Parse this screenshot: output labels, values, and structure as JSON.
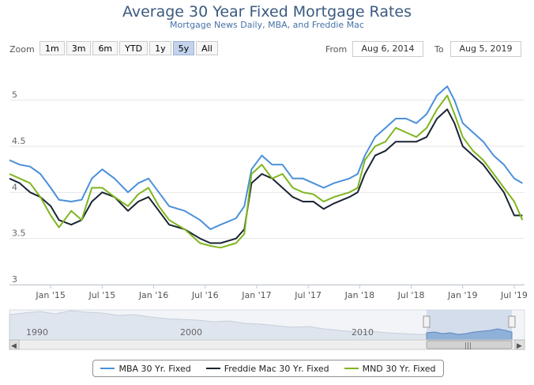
{
  "chart_data": {
    "type": "line",
    "title": "Average 30 Year Fixed Mortgage Rates",
    "subtitle": "Mortgage News Daily, MBA, and Freddie Mac",
    "x_start": 2014.6,
    "x_end": 2019.6,
    "ylim": [
      3,
      5.4
    ],
    "y_ticks": [
      {
        "value": 3,
        "label": "3"
      },
      {
        "value": 3.5,
        "label": "3.5"
      },
      {
        "value": 4,
        "label": "4"
      },
      {
        "value": 4.5,
        "label": "4.5"
      },
      {
        "value": 5,
        "label": "5"
      }
    ],
    "x_ticks": [
      {
        "x": 2015.0,
        "label": "Jan '15"
      },
      {
        "x": 2015.5,
        "label": "Jul '15"
      },
      {
        "x": 2016.0,
        "label": "Jan '16"
      },
      {
        "x": 2016.5,
        "label": "Jul '16"
      },
      {
        "x": 2017.0,
        "label": "Jan '17"
      },
      {
        "x": 2017.5,
        "label": "Jul '17"
      },
      {
        "x": 2018.0,
        "label": "Jan '18"
      },
      {
        "x": 2018.5,
        "label": "Jul '18"
      },
      {
        "x": 2019.0,
        "label": "Jan '19"
      },
      {
        "x": 2019.5,
        "label": "Jul '19"
      }
    ],
    "series": [
      {
        "name": "MBA 30 Yr. Fixed",
        "color": "#4a90d9",
        "points": [
          [
            2014.6,
            4.35
          ],
          [
            2014.7,
            4.3
          ],
          [
            2014.8,
            4.28
          ],
          [
            2014.9,
            4.2
          ],
          [
            2015.0,
            4.05
          ],
          [
            2015.08,
            3.92
          ],
          [
            2015.2,
            3.9
          ],
          [
            2015.3,
            3.92
          ],
          [
            2015.4,
            4.15
          ],
          [
            2015.5,
            4.25
          ],
          [
            2015.62,
            4.15
          ],
          [
            2015.75,
            4.0
          ],
          [
            2015.85,
            4.1
          ],
          [
            2015.95,
            4.15
          ],
          [
            2016.05,
            4.0
          ],
          [
            2016.15,
            3.85
          ],
          [
            2016.3,
            3.8
          ],
          [
            2016.45,
            3.7
          ],
          [
            2016.55,
            3.6
          ],
          [
            2016.65,
            3.65
          ],
          [
            2016.8,
            3.72
          ],
          [
            2016.88,
            3.85
          ],
          [
            2016.95,
            4.25
          ],
          [
            2017.05,
            4.4
          ],
          [
            2017.15,
            4.3
          ],
          [
            2017.25,
            4.3
          ],
          [
            2017.35,
            4.15
          ],
          [
            2017.45,
            4.15
          ],
          [
            2017.55,
            4.1
          ],
          [
            2017.65,
            4.05
          ],
          [
            2017.75,
            4.1
          ],
          [
            2017.9,
            4.15
          ],
          [
            2017.98,
            4.2
          ],
          [
            2018.05,
            4.4
          ],
          [
            2018.15,
            4.6
          ],
          [
            2018.25,
            4.7
          ],
          [
            2018.35,
            4.8
          ],
          [
            2018.45,
            4.8
          ],
          [
            2018.55,
            4.75
          ],
          [
            2018.65,
            4.85
          ],
          [
            2018.75,
            5.05
          ],
          [
            2018.85,
            5.15
          ],
          [
            2018.92,
            5.0
          ],
          [
            2019.0,
            4.75
          ],
          [
            2019.1,
            4.65
          ],
          [
            2019.2,
            4.55
          ],
          [
            2019.3,
            4.4
          ],
          [
            2019.4,
            4.3
          ],
          [
            2019.5,
            4.15
          ],
          [
            2019.58,
            4.1
          ]
        ]
      },
      {
        "name": "Freddie Mac 30 Yr. Fixed",
        "color": "#1a2433",
        "points": [
          [
            2014.6,
            4.15
          ],
          [
            2014.7,
            4.1
          ],
          [
            2014.8,
            4.0
          ],
          [
            2014.9,
            3.95
          ],
          [
            2015.0,
            3.85
          ],
          [
            2015.08,
            3.7
          ],
          [
            2015.2,
            3.65
          ],
          [
            2015.3,
            3.7
          ],
          [
            2015.4,
            3.9
          ],
          [
            2015.5,
            4.0
          ],
          [
            2015.62,
            3.95
          ],
          [
            2015.75,
            3.8
          ],
          [
            2015.85,
            3.9
          ],
          [
            2015.95,
            3.95
          ],
          [
            2016.05,
            3.8
          ],
          [
            2016.15,
            3.65
          ],
          [
            2016.3,
            3.6
          ],
          [
            2016.45,
            3.5
          ],
          [
            2016.55,
            3.45
          ],
          [
            2016.65,
            3.45
          ],
          [
            2016.8,
            3.5
          ],
          [
            2016.88,
            3.6
          ],
          [
            2016.95,
            4.1
          ],
          [
            2017.05,
            4.2
          ],
          [
            2017.15,
            4.15
          ],
          [
            2017.25,
            4.05
          ],
          [
            2017.35,
            3.95
          ],
          [
            2017.45,
            3.9
          ],
          [
            2017.55,
            3.9
          ],
          [
            2017.65,
            3.82
          ],
          [
            2017.75,
            3.88
          ],
          [
            2017.9,
            3.95
          ],
          [
            2017.98,
            4.0
          ],
          [
            2018.05,
            4.2
          ],
          [
            2018.15,
            4.4
          ],
          [
            2018.25,
            4.45
          ],
          [
            2018.35,
            4.55
          ],
          [
            2018.45,
            4.55
          ],
          [
            2018.55,
            4.55
          ],
          [
            2018.65,
            4.6
          ],
          [
            2018.75,
            4.8
          ],
          [
            2018.85,
            4.9
          ],
          [
            2018.92,
            4.75
          ],
          [
            2019.0,
            4.5
          ],
          [
            2019.1,
            4.4
          ],
          [
            2019.2,
            4.3
          ],
          [
            2019.3,
            4.15
          ],
          [
            2019.4,
            4.0
          ],
          [
            2019.5,
            3.75
          ],
          [
            2019.58,
            3.75
          ]
        ]
      },
      {
        "name": "MND 30 Yr. Fixed",
        "color": "#7fb51f",
        "points": [
          [
            2014.6,
            4.2
          ],
          [
            2014.7,
            4.15
          ],
          [
            2014.8,
            4.1
          ],
          [
            2014.9,
            3.95
          ],
          [
            2015.0,
            3.75
          ],
          [
            2015.08,
            3.62
          ],
          [
            2015.2,
            3.8
          ],
          [
            2015.3,
            3.7
          ],
          [
            2015.4,
            4.05
          ],
          [
            2015.5,
            4.05
          ],
          [
            2015.62,
            3.95
          ],
          [
            2015.75,
            3.85
          ],
          [
            2015.85,
            3.98
          ],
          [
            2015.95,
            4.05
          ],
          [
            2016.05,
            3.85
          ],
          [
            2016.15,
            3.7
          ],
          [
            2016.3,
            3.6
          ],
          [
            2016.45,
            3.45
          ],
          [
            2016.55,
            3.42
          ],
          [
            2016.65,
            3.4
          ],
          [
            2016.8,
            3.45
          ],
          [
            2016.88,
            3.55
          ],
          [
            2016.95,
            4.2
          ],
          [
            2017.05,
            4.3
          ],
          [
            2017.15,
            4.15
          ],
          [
            2017.25,
            4.2
          ],
          [
            2017.35,
            4.05
          ],
          [
            2017.45,
            4.0
          ],
          [
            2017.55,
            3.98
          ],
          [
            2017.65,
            3.9
          ],
          [
            2017.75,
            3.95
          ],
          [
            2017.9,
            4.0
          ],
          [
            2017.98,
            4.05
          ],
          [
            2018.05,
            4.35
          ],
          [
            2018.15,
            4.5
          ],
          [
            2018.25,
            4.55
          ],
          [
            2018.35,
            4.7
          ],
          [
            2018.45,
            4.65
          ],
          [
            2018.55,
            4.6
          ],
          [
            2018.65,
            4.7
          ],
          [
            2018.75,
            4.9
          ],
          [
            2018.85,
            5.05
          ],
          [
            2018.92,
            4.85
          ],
          [
            2019.0,
            4.6
          ],
          [
            2019.1,
            4.45
          ],
          [
            2019.2,
            4.35
          ],
          [
            2019.3,
            4.2
          ],
          [
            2019.4,
            4.05
          ],
          [
            2019.5,
            3.9
          ],
          [
            2019.58,
            3.7
          ]
        ]
      }
    ]
  },
  "zoom": {
    "label": "Zoom",
    "buttons": [
      "1m",
      "3m",
      "6m",
      "YTD",
      "1y",
      "5y",
      "All"
    ],
    "active": "5y"
  },
  "range": {
    "from_label": "From",
    "from_value": "Aug 6, 2014",
    "to_label": "To",
    "to_value": "Aug 5, 2019"
  },
  "navigator": {
    "labels": [
      "1990",
      "2000",
      "2010"
    ],
    "handle_glyph": "|||",
    "left_arrow": "◀",
    "right_arrow": "▶"
  },
  "legend": {
    "items": [
      {
        "label": "MBA 30 Yr. Fixed",
        "color": "#4a90d9"
      },
      {
        "label": "Freddie Mac 30 Yr. Fixed",
        "color": "#1a2433"
      },
      {
        "label": "MND 30 Yr. Fixed",
        "color": "#7fb51f"
      }
    ]
  }
}
